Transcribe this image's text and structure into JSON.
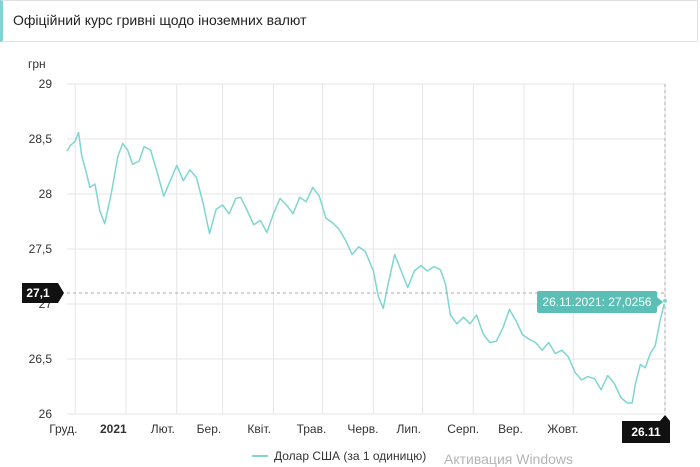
{
  "header": {
    "title": "Офіційний курс гривні щодо іноземних валют"
  },
  "chart_data": {
    "type": "line",
    "ylabel": "грн",
    "ylim": [
      26,
      29
    ],
    "yticks": [
      {
        "value": 29,
        "label": "29"
      },
      {
        "value": 28.5,
        "label": "28,5"
      },
      {
        "value": 28,
        "label": "28"
      },
      {
        "value": 27.5,
        "label": "27,5"
      },
      {
        "value": 27,
        "label": "27"
      },
      {
        "value": 26.5,
        "label": "26,5"
      },
      {
        "value": 26,
        "label": "26"
      }
    ],
    "xlim": [
      "2020-11-26",
      "2021-11-26"
    ],
    "xticks": [
      {
        "date": "2020-12-01",
        "label": "Груд.",
        "bold": false
      },
      {
        "date": "2021-01-01",
        "label": "2021",
        "bold": true
      },
      {
        "date": "2021-02-01",
        "label": "Лют.",
        "bold": false
      },
      {
        "date": "2021-03-01",
        "label": "Бер.",
        "bold": false
      },
      {
        "date": "2021-04-01",
        "label": "Квіт.",
        "bold": false
      },
      {
        "date": "2021-05-01",
        "label": "Трав.",
        "bold": false
      },
      {
        "date": "2021-06-01",
        "label": "Черв.",
        "bold": false
      },
      {
        "date": "2021-07-01",
        "label": "Лип.",
        "bold": false
      },
      {
        "date": "2021-08-01",
        "label": "Серп.",
        "bold": false
      },
      {
        "date": "2021-09-01",
        "label": "Вер.",
        "bold": false
      },
      {
        "date": "2021-10-01",
        "label": "Жовт.",
        "bold": false
      }
    ],
    "series": [
      {
        "name": "Долар США (за 1 одиницю)",
        "color": "#7fd6d0",
        "points": [
          [
            "2020-11-26",
            28.39
          ],
          [
            "2020-11-28",
            28.44
          ],
          [
            "2020-12-01",
            28.48
          ],
          [
            "2020-12-03",
            28.56
          ],
          [
            "2020-12-05",
            28.35
          ],
          [
            "2020-12-08",
            28.18
          ],
          [
            "2020-12-10",
            28.06
          ],
          [
            "2020-12-13",
            28.09
          ],
          [
            "2020-12-16",
            27.85
          ],
          [
            "2020-12-19",
            27.73
          ],
          [
            "2020-12-23",
            28.0
          ],
          [
            "2020-12-27",
            28.34
          ],
          [
            "2020-12-30",
            28.46
          ],
          [
            "2021-01-02",
            28.4
          ],
          [
            "2021-01-05",
            28.27
          ],
          [
            "2021-01-09",
            28.3
          ],
          [
            "2021-01-12",
            28.43
          ],
          [
            "2021-01-16",
            28.4
          ],
          [
            "2021-01-20",
            28.2
          ],
          [
            "2021-01-24",
            27.98
          ],
          [
            "2021-01-28",
            28.12
          ],
          [
            "2021-02-01",
            28.26
          ],
          [
            "2021-02-05",
            28.12
          ],
          [
            "2021-02-09",
            28.22
          ],
          [
            "2021-02-13",
            28.15
          ],
          [
            "2021-02-17",
            27.92
          ],
          [
            "2021-02-21",
            27.64
          ],
          [
            "2021-02-25",
            27.86
          ],
          [
            "2021-03-01",
            27.9
          ],
          [
            "2021-03-05",
            27.82
          ],
          [
            "2021-03-09",
            27.96
          ],
          [
            "2021-03-12",
            27.97
          ],
          [
            "2021-03-16",
            27.85
          ],
          [
            "2021-03-20",
            27.72
          ],
          [
            "2021-03-24",
            27.76
          ],
          [
            "2021-03-28",
            27.65
          ],
          [
            "2021-04-01",
            27.82
          ],
          [
            "2021-04-05",
            27.96
          ],
          [
            "2021-04-09",
            27.9
          ],
          [
            "2021-04-13",
            27.82
          ],
          [
            "2021-04-17",
            27.97
          ],
          [
            "2021-04-21",
            27.93
          ],
          [
            "2021-04-25",
            28.06
          ],
          [
            "2021-04-29",
            27.98
          ],
          [
            "2021-05-03",
            27.78
          ],
          [
            "2021-05-07",
            27.74
          ],
          [
            "2021-05-11",
            27.68
          ],
          [
            "2021-05-15",
            27.58
          ],
          [
            "2021-05-19",
            27.45
          ],
          [
            "2021-05-23",
            27.52
          ],
          [
            "2021-05-27",
            27.48
          ],
          [
            "2021-06-01",
            27.3
          ],
          [
            "2021-06-04",
            27.07
          ],
          [
            "2021-06-07",
            26.96
          ],
          [
            "2021-06-10",
            27.18
          ],
          [
            "2021-06-14",
            27.45
          ],
          [
            "2021-06-18",
            27.3
          ],
          [
            "2021-06-22",
            27.15
          ],
          [
            "2021-06-26",
            27.3
          ],
          [
            "2021-06-30",
            27.35
          ],
          [
            "2021-07-04",
            27.3
          ],
          [
            "2021-07-08",
            27.34
          ],
          [
            "2021-07-12",
            27.31
          ],
          [
            "2021-07-15",
            27.18
          ],
          [
            "2021-07-18",
            26.9
          ],
          [
            "2021-07-22",
            26.82
          ],
          [
            "2021-07-26",
            26.88
          ],
          [
            "2021-07-30",
            26.82
          ],
          [
            "2021-08-03",
            26.9
          ],
          [
            "2021-08-07",
            26.73
          ],
          [
            "2021-08-11",
            26.65
          ],
          [
            "2021-08-15",
            26.66
          ],
          [
            "2021-08-19",
            26.78
          ],
          [
            "2021-08-23",
            26.95
          ],
          [
            "2021-08-27",
            26.85
          ],
          [
            "2021-08-31",
            26.72
          ],
          [
            "2021-09-04",
            26.68
          ],
          [
            "2021-09-08",
            26.65
          ],
          [
            "2021-09-12",
            26.58
          ],
          [
            "2021-09-16",
            26.65
          ],
          [
            "2021-09-20",
            26.55
          ],
          [
            "2021-09-24",
            26.58
          ],
          [
            "2021-09-28",
            26.52
          ],
          [
            "2021-10-02",
            26.38
          ],
          [
            "2021-10-06",
            26.31
          ],
          [
            "2021-10-10",
            26.34
          ],
          [
            "2021-10-14",
            26.32
          ],
          [
            "2021-10-18",
            26.22
          ],
          [
            "2021-10-22",
            26.35
          ],
          [
            "2021-10-26",
            26.28
          ],
          [
            "2021-10-30",
            26.15
          ],
          [
            "2021-11-03",
            26.1
          ],
          [
            "2021-11-06",
            26.1
          ],
          [
            "2021-11-08",
            26.28
          ],
          [
            "2021-11-11",
            26.45
          ],
          [
            "2021-11-14",
            26.42
          ],
          [
            "2021-11-17",
            26.55
          ],
          [
            "2021-11-20",
            26.62
          ],
          [
            "2021-11-23",
            26.85
          ],
          [
            "2021-11-26",
            27.03
          ]
        ]
      }
    ],
    "crosshair": {
      "y_label": "27,1",
      "x_label": "26.11",
      "tooltip": "26.11.2021: 27,0256"
    },
    "legend_position": "bottom"
  },
  "legend": {
    "label": "Долар США (за 1 одиницю)"
  },
  "watermark": {
    "text": "Активация Windows"
  }
}
